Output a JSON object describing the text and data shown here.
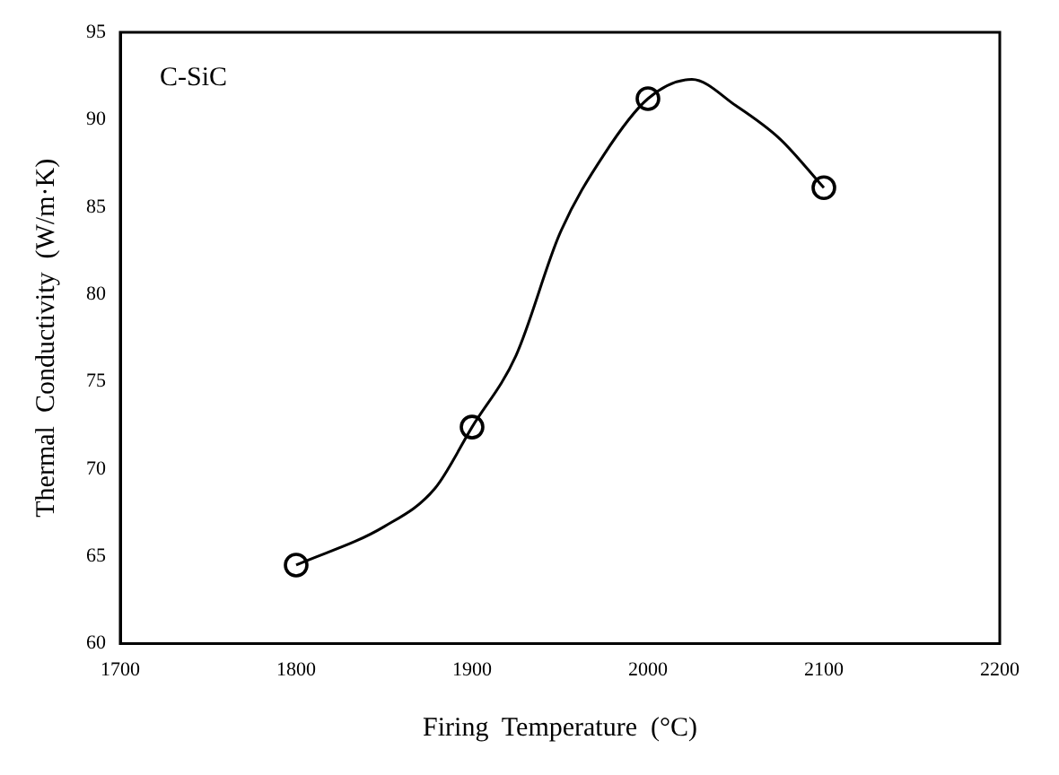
{
  "chart_data": {
    "type": "scatter",
    "xlabel": "Firing  Temperature  (°C)",
    "ylabel": "Thermal  Conductivity  (W/m·K)",
    "annotations": [
      "C-SiC"
    ],
    "xlim": [
      1700,
      2200
    ],
    "xticks": [
      1700,
      1800,
      1900,
      2000,
      2100,
      2200
    ],
    "ylim": [
      60,
      95
    ],
    "yticks": [
      60,
      65,
      70,
      75,
      80,
      85,
      90,
      95
    ],
    "grid": false,
    "legend": false,
    "series": [
      {
        "type": "scatter",
        "color": "#000000",
        "marker": "circle",
        "x": [
          1800,
          1900,
          2000,
          2100
        ],
        "values": [
          64.5,
          72.4,
          91.2,
          86.1
        ]
      },
      {
        "type": "line",
        "color": "#000000",
        "marker": "none",
        "line_style": "solid",
        "x": [
          1800,
          1850,
          1879,
          1900,
          1925,
          1950,
          1975,
          2000,
          2025,
          2050,
          2075,
          2100
        ],
        "values": [
          64.5,
          66.7,
          68.9,
          72.4,
          76.5,
          83.5,
          88.0,
          91.2,
          92.3,
          90.8,
          88.9,
          86.1
        ]
      }
    ]
  }
}
